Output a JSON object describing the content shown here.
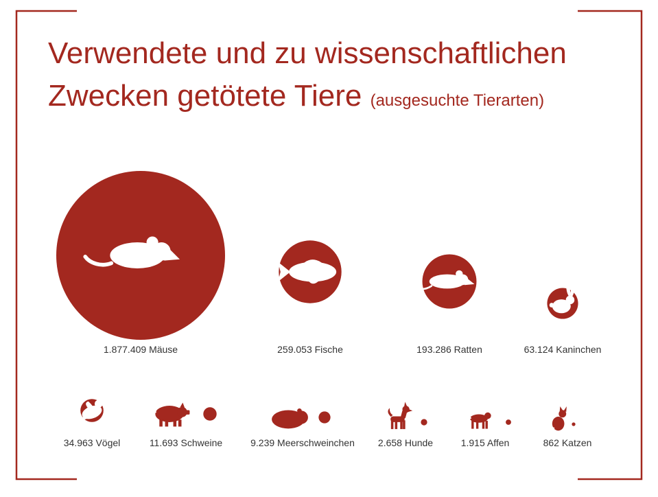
{
  "colors": {
    "accent": "#a3281f",
    "background": "#ffffff",
    "label": "#333333",
    "icon": "#ffffff"
  },
  "header": {
    "title_line_1": "Verwendete und zu wissenschaftlichen",
    "title_line_2": "Zwecken getötete Tiere",
    "subtitle": "(ausgesuchte Tierarten)"
  },
  "chart_data": {
    "type": "bubble",
    "title": "Verwendete und zu wissenschaftlichen Zwecken getötete Tiere",
    "subtitle": "(ausgesuchte Tierarten)",
    "encoding": "circle area proportional to value",
    "points": [
      {
        "value": 1877409,
        "label": "1.877.409 Mäuse",
        "icon": "mouse-icon"
      },
      {
        "value": 259053,
        "label": "259.053 Fische",
        "icon": "fish-icon"
      },
      {
        "value": 193286,
        "label": "193.286 Ratten",
        "icon": "rat-icon"
      },
      {
        "value": 63124,
        "label": "63.124 Kaninchen",
        "icon": "rabbit-icon"
      },
      {
        "value": 34963,
        "label": "34.963 Vögel",
        "icon": "bird-icon"
      },
      {
        "value": 11693,
        "label": "11.693 Schweine",
        "icon": "pig-icon"
      },
      {
        "value": 9239,
        "label": "9.239 Meerschweinchen",
        "icon": "guinea-pig-icon"
      },
      {
        "value": 2658,
        "label": "2.658 Hunde",
        "icon": "dog-icon"
      },
      {
        "value": 1915,
        "label": "1.915 Affen",
        "icon": "monkey-icon"
      },
      {
        "value": 862,
        "label": "862 Katzen",
        "icon": "cat-icon"
      }
    ]
  }
}
